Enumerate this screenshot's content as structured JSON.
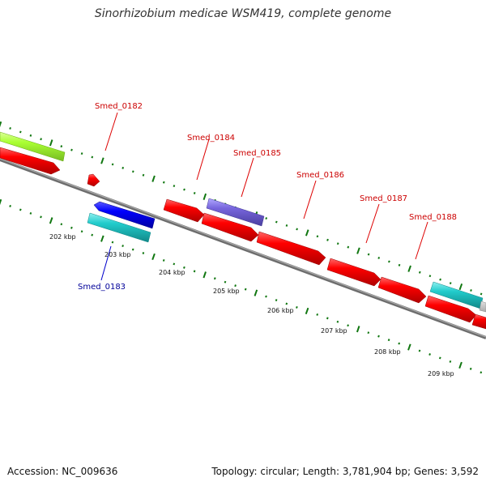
{
  "title": "Sinorhizobium medicae WSM419, complete genome",
  "footer": {
    "accession": "Accession: NC_009636",
    "summary": "Topology: circular; Length: 3,781,904 bp; Genes: 3,592"
  },
  "colors": {
    "forward_gene": "#ff0000",
    "reverse_gene": "#0000ff",
    "cyan_gene": "#00cccc",
    "purple_gene": "#7766dd",
    "green_gene": "#aaff33",
    "label_forward": "#cc0000",
    "label_reverse": "#000099",
    "axis": "#888888",
    "tick": "#117711"
  },
  "scale_labels": [
    "202 kbp",
    "203 kbp",
    "204 kbp",
    "205 kbp",
    "206 kbp",
    "207 kbp",
    "208 kbp",
    "209 kbp"
  ],
  "gene_labels": [
    {
      "name": "Smed_0182",
      "strand": "forward"
    },
    {
      "name": "Smed_0183",
      "strand": "reverse"
    },
    {
      "name": "Smed_0184",
      "strand": "forward"
    },
    {
      "name": "Smed_0185",
      "strand": "forward"
    },
    {
      "name": "Smed_0186",
      "strand": "forward"
    },
    {
      "name": "Smed_0187",
      "strand": "forward"
    },
    {
      "name": "Smed_0188",
      "strand": "forward"
    }
  ]
}
